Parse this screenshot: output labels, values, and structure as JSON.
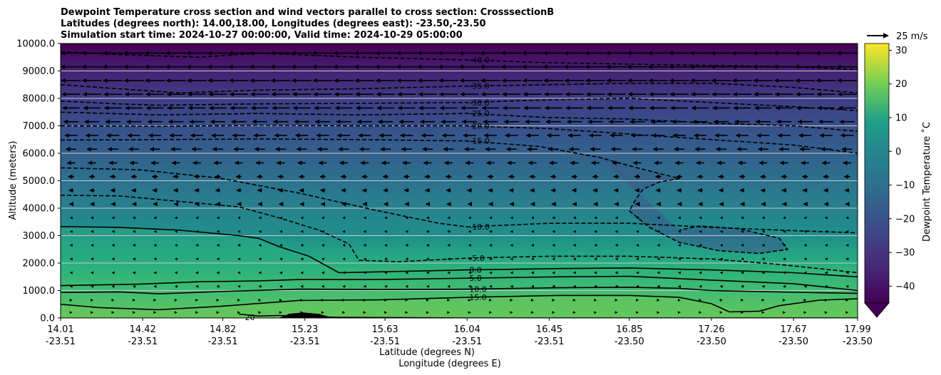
{
  "chart_data": {
    "type": "contour",
    "title_lines": [
      "Dewpoint Temperature cross section and wind vectors parallel to cross section: CrosssectionB",
      "Latitudes (degrees north): 14.00,18.00, Longitudes (degrees east): -23.50,-23.50",
      "Simulation start time: 2024-10-27 00:00:00, Valid time: 2024-10-29 05:00:00"
    ],
    "xlabel": "Latitude (degrees N)",
    "xlabel2": "Longitude (degrees E)",
    "ylabel": "Altitude (meters)",
    "xlim": [
      14.01,
      17.99
    ],
    "ylim": [
      0,
      10000
    ],
    "grid": "horizontal",
    "x_ticks": [
      {
        "lat": "14.01",
        "lon": "-23.51"
      },
      {
        "lat": "14.42",
        "lon": "-23.51"
      },
      {
        "lat": "14.82",
        "lon": "-23.51"
      },
      {
        "lat": "15.23",
        "lon": "-23.51"
      },
      {
        "lat": "15.63",
        "lon": "-23.51"
      },
      {
        "lat": "16.04",
        "lon": "-23.51"
      },
      {
        "lat": "16.45",
        "lon": "-23.51"
      },
      {
        "lat": "16.85",
        "lon": "-23.50"
      },
      {
        "lat": "17.26",
        "lon": "-23.50"
      },
      {
        "lat": "17.67",
        "lon": "-23.50"
      },
      {
        "lat": "17.99",
        "lon": "-23.50"
      }
    ],
    "y_ticks": [
      "0.0",
      "1000.0",
      "2000.0",
      "3000.0",
      "4000.0",
      "5000.0",
      "6000.0",
      "7000.0",
      "8000.0",
      "9000.0",
      "10000.0"
    ],
    "colorbar": {
      "label": "Dewpoint Temperature $^\\circ$C",
      "label_text": "Dewpoint Temperature ˚C",
      "ticks": [
        "30",
        "20",
        "10",
        "0",
        "−10",
        "−20",
        "−30",
        "−40"
      ],
      "range": [
        -45,
        32
      ],
      "colormap": "viridis",
      "extend": "min"
    },
    "quiver_key": {
      "label": "25 m/s",
      "value": 25
    },
    "contours": [
      {
        "level": 20,
        "label": "20",
        "style": "solid",
        "points": [
          [
            14.9,
            140
          ],
          [
            15.0,
            70
          ],
          [
            15.1,
            90
          ],
          [
            15.2,
            60
          ],
          [
            15.4,
            20
          ],
          [
            16.0,
            0
          ],
          [
            17.99,
            0
          ]
        ]
      },
      {
        "level": 15,
        "label": "15.0",
        "style": "solid",
        "points": [
          [
            14.01,
            500
          ],
          [
            14.2,
            380
          ],
          [
            14.5,
            300
          ],
          [
            14.8,
            420
          ],
          [
            15.2,
            640
          ],
          [
            15.6,
            660
          ],
          [
            16.04,
            750
          ],
          [
            16.5,
            820
          ],
          [
            16.85,
            820
          ],
          [
            17.1,
            750
          ],
          [
            17.26,
            520
          ],
          [
            17.35,
            220
          ],
          [
            17.5,
            250
          ],
          [
            17.6,
            450
          ],
          [
            17.8,
            650
          ],
          [
            17.99,
            700
          ]
        ]
      },
      {
        "level": 10,
        "label": "10.0",
        "style": "solid",
        "points": [
          [
            14.01,
            930
          ],
          [
            14.3,
            950
          ],
          [
            14.5,
            880
          ],
          [
            14.8,
            960
          ],
          [
            15.2,
            1050
          ],
          [
            15.6,
            1040
          ],
          [
            16.04,
            1050
          ],
          [
            16.5,
            1100
          ],
          [
            16.85,
            1120
          ],
          [
            17.1,
            1080
          ],
          [
            17.26,
            1000
          ],
          [
            17.5,
            960
          ],
          [
            17.8,
            920
          ],
          [
            17.99,
            900
          ]
        ]
      },
      {
        "level": 5,
        "label": "5.0",
        "style": "solid",
        "points": [
          [
            14.01,
            1180
          ],
          [
            14.4,
            1230
          ],
          [
            14.7,
            1320
          ],
          [
            15.0,
            1350
          ],
          [
            15.2,
            1400
          ],
          [
            15.6,
            1400
          ],
          [
            16.04,
            1450
          ],
          [
            16.5,
            1500
          ],
          [
            16.85,
            1520
          ],
          [
            17.26,
            1380
          ],
          [
            17.67,
            1250
          ],
          [
            17.99,
            1000
          ]
        ]
      },
      {
        "level": 0,
        "label": "0.0",
        "style": "solid",
        "points": [
          [
            14.01,
            3330
          ],
          [
            14.3,
            3300
          ],
          [
            14.6,
            3200
          ],
          [
            14.9,
            3000
          ],
          [
            15.0,
            2900
          ],
          [
            15.1,
            2600
          ],
          [
            15.25,
            2250
          ],
          [
            15.4,
            1650
          ],
          [
            15.6,
            1680
          ],
          [
            16.04,
            1750
          ],
          [
            16.5,
            1800
          ],
          [
            16.85,
            1820
          ],
          [
            17.26,
            1750
          ],
          [
            17.67,
            1650
          ],
          [
            17.99,
            1500
          ]
        ]
      },
      {
        "level": -5,
        "label": "-5.0",
        "style": "dashed",
        "points": [
          [
            14.01,
            4470
          ],
          [
            14.3,
            4450
          ],
          [
            14.6,
            4250
          ],
          [
            14.9,
            4050
          ],
          [
            15.1,
            3650
          ],
          [
            15.3,
            3200
          ],
          [
            15.45,
            2700
          ],
          [
            15.5,
            2100
          ],
          [
            15.7,
            2050
          ],
          [
            16.04,
            2180
          ],
          [
            16.45,
            2250
          ],
          [
            16.85,
            2250
          ],
          [
            17.26,
            2150
          ],
          [
            17.6,
            1950
          ],
          [
            17.99,
            1650
          ]
        ]
      },
      {
        "level": -10,
        "label": "-10.0",
        "style": "dashed",
        "points": [
          [
            14.01,
            5470
          ],
          [
            14.4,
            5400
          ],
          [
            14.8,
            5100
          ],
          [
            15.2,
            4550
          ],
          [
            15.6,
            3900
          ],
          [
            15.9,
            3450
          ],
          [
            16.04,
            3320
          ],
          [
            16.45,
            3450
          ],
          [
            16.85,
            3450
          ],
          [
            17.26,
            3300
          ],
          [
            17.6,
            3200
          ],
          [
            17.99,
            3100
          ]
        ]
      },
      {
        "level": -15,
        "label": "-15.0",
        "style": "dashed",
        "points": [
          [
            14.01,
            6480
          ],
          [
            14.5,
            6500
          ],
          [
            15.0,
            6520
          ],
          [
            15.5,
            6500
          ],
          [
            16.04,
            6450
          ],
          [
            16.4,
            6250
          ],
          [
            16.7,
            5850
          ],
          [
            16.9,
            5450
          ],
          [
            17.1,
            5080
          ],
          [
            17.0,
            4950
          ],
          [
            16.92,
            4700
          ],
          [
            16.88,
            4300
          ],
          [
            16.85,
            3900
          ],
          [
            16.95,
            3300
          ],
          [
            17.1,
            2750
          ],
          [
            17.3,
            2450
          ],
          [
            17.5,
            2350
          ],
          [
            17.64,
            2500
          ],
          [
            17.6,
            2900
          ],
          [
            17.4,
            3250
          ],
          [
            17.2,
            3350
          ],
          [
            17.1,
            3200
          ]
        ]
      },
      {
        "level": -20,
        "label": "-20.0",
        "style": "dashed",
        "points": [
          [
            14.01,
            7000
          ],
          [
            14.5,
            6980
          ],
          [
            15.0,
            7020
          ],
          [
            15.5,
            7000
          ],
          [
            16.04,
            7000
          ],
          [
            16.45,
            6900
          ],
          [
            16.85,
            6700
          ],
          [
            17.26,
            6500
          ],
          [
            17.67,
            6300
          ],
          [
            17.99,
            6000
          ]
        ]
      },
      {
        "level": -25,
        "label": "-25.0",
        "style": "dashed",
        "points": [
          [
            14.01,
            7500
          ],
          [
            14.5,
            7400
          ],
          [
            15.0,
            7450
          ],
          [
            15.5,
            7400
          ],
          [
            16.04,
            7450
          ],
          [
            16.45,
            7300
          ],
          [
            16.85,
            7250
          ],
          [
            17.26,
            7100
          ],
          [
            17.67,
            7000
          ],
          [
            17.99,
            6800
          ]
        ]
      },
      {
        "level": -30,
        "label": "-30.0",
        "style": "dashed",
        "points": [
          [
            14.01,
            7900
          ],
          [
            14.3,
            7800
          ],
          [
            14.5,
            7750
          ],
          [
            15.0,
            7800
          ],
          [
            15.5,
            7820
          ],
          [
            16.04,
            7850
          ],
          [
            16.45,
            7950
          ],
          [
            16.85,
            8000
          ],
          [
            17.26,
            7850
          ],
          [
            17.67,
            7700
          ],
          [
            17.99,
            7550
          ]
        ]
      },
      {
        "level": -35,
        "label": "-35.0",
        "style": "dashed",
        "points": [
          [
            14.01,
            8500
          ],
          [
            14.3,
            8350
          ],
          [
            14.6,
            8200
          ],
          [
            15.0,
            8300
          ],
          [
            15.5,
            8350
          ],
          [
            16.04,
            8450
          ],
          [
            16.45,
            8500
          ],
          [
            16.85,
            8550
          ],
          [
            17.26,
            8550
          ],
          [
            17.67,
            8400
          ],
          [
            17.99,
            8200
          ]
        ]
      },
      {
        "level": -40,
        "label": "-40.0",
        "style": "dashed",
        "points": [
          [
            14.01,
            9700
          ],
          [
            14.3,
            9600
          ],
          [
            14.7,
            9500
          ],
          [
            15.0,
            9650
          ],
          [
            15.5,
            9500
          ],
          [
            16.04,
            9400
          ],
          [
            16.45,
            9300
          ],
          [
            16.85,
            9250
          ],
          [
            17.26,
            9200
          ],
          [
            17.67,
            9150
          ],
          [
            17.99,
            9050
          ]
        ]
      }
    ],
    "wind_profile": [
      {
        "z": 9650,
        "u": -18
      },
      {
        "z": 9150,
        "u": -18
      },
      {
        "z": 8650,
        "u": -17
      },
      {
        "z": 8150,
        "u": -16
      },
      {
        "z": 7650,
        "u": -15
      },
      {
        "z": 7150,
        "u": -13
      },
      {
        "z": 6650,
        "u": -11
      },
      {
        "z": 6150,
        "u": -9
      },
      {
        "z": 5650,
        "u": -7
      },
      {
        "z": 5150,
        "u": -5
      },
      {
        "z": 4650,
        "u": -4
      },
      {
        "z": 4150,
        "u": -3
      },
      {
        "z": 3650,
        "u": -2
      },
      {
        "z": 3150,
        "u": -2
      },
      {
        "z": 2650,
        "u": -1.5
      },
      {
        "z": 2150,
        "u": -1.5
      },
      {
        "z": 1650,
        "u": -1.5
      },
      {
        "z": 1150,
        "u": -1.5
      },
      {
        "z": 650,
        "u": 1.5
      },
      {
        "z": 200,
        "u": 2
      }
    ],
    "terrain": {
      "label": "",
      "points": [
        [
          15.1,
          0
        ],
        [
          15.15,
          150
        ],
        [
          15.22,
          200
        ],
        [
          15.3,
          150
        ],
        [
          15.37,
          0
        ]
      ]
    }
  }
}
